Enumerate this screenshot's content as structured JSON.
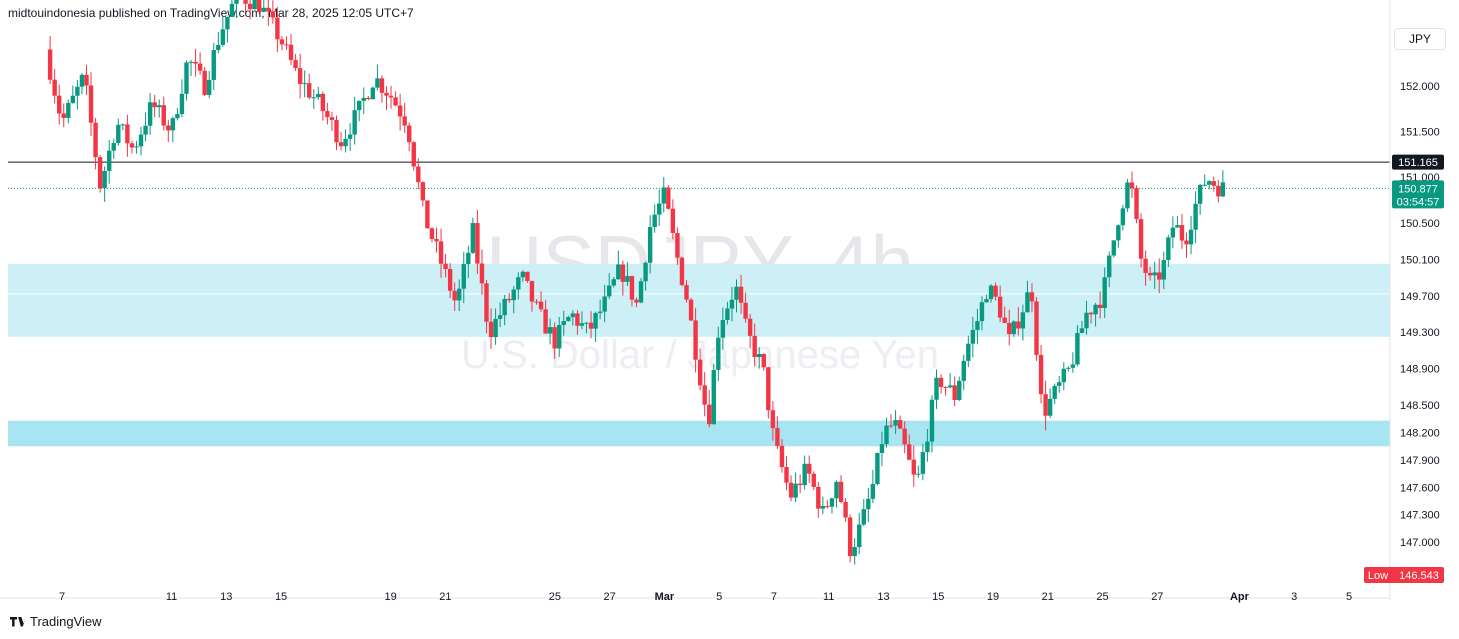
{
  "header": {
    "publisher": "midtouindonesia published on TradingView.com, Mar 28, 2025 12:05 UTC+7"
  },
  "footer": {
    "brand": "TradingView"
  },
  "currency_button": "JPY",
  "colors": {
    "up": "#089981",
    "down": "#f23645",
    "zone": "#cdf0f7",
    "zone_strong": "#a7e5f2",
    "resistance": "#131722",
    "current": "#089981"
  },
  "chart_data": {
    "type": "candlestick",
    "title": "USDJPY, 4h",
    "subtitle": "U.S. Dollar / Japanese Yen",
    "y_ticks": [
      "152.000",
      "151.500",
      "151.000",
      "150.500",
      "150.100",
      "149.700",
      "149.300",
      "148.900",
      "148.500",
      "148.200",
      "147.900",
      "147.600",
      "147.300",
      "147.000"
    ],
    "ylim": [
      146.5,
      152.7
    ],
    "x_ticks": [
      {
        "label": "7",
        "x": 7,
        "month": false
      },
      {
        "label": "11",
        "x": 11,
        "month": false
      },
      {
        "label": "13",
        "x": 13,
        "month": false
      },
      {
        "label": "15",
        "x": 15,
        "month": false
      },
      {
        "label": "19",
        "x": 19,
        "month": false
      },
      {
        "label": "21",
        "x": 21,
        "month": false
      },
      {
        "label": "25",
        "x": 25,
        "month": false
      },
      {
        "label": "27",
        "x": 27,
        "month": false
      },
      {
        "label": "Mar",
        "x": 29,
        "month": true
      },
      {
        "label": "5",
        "x": 31,
        "month": false
      },
      {
        "label": "7",
        "x": 33,
        "month": false
      },
      {
        "label": "11",
        "x": 35,
        "month": false
      },
      {
        "label": "13",
        "x": 37,
        "month": false
      },
      {
        "label": "15",
        "x": 39,
        "month": false
      },
      {
        "label": "19",
        "x": 41,
        "month": false
      },
      {
        "label": "21",
        "x": 43,
        "month": false
      },
      {
        "label": "25",
        "x": 45,
        "month": false
      },
      {
        "label": "27",
        "x": 47,
        "month": false
      },
      {
        "label": "Apr",
        "x": 50,
        "month": true
      },
      {
        "label": "3",
        "x": 52,
        "month": false
      },
      {
        "label": "5",
        "x": 54,
        "month": false
      }
    ],
    "xlim": [
      6,
      58
    ],
    "zones": [
      {
        "from": 149.25,
        "to": 150.05
      },
      {
        "from": 148.05,
        "to": 148.33
      }
    ],
    "zone_midline": 149.72,
    "resistance": {
      "value": 151.165,
      "label": "151.165"
    },
    "current": {
      "value": 150.877,
      "label": "150.877",
      "countdown": "03:54:57"
    },
    "low": {
      "label": "Low",
      "value": "146.543"
    },
    "anchors": [
      [
        6.4,
        152.4
      ],
      [
        7.0,
        151.6
      ],
      [
        7.8,
        152.1
      ],
      [
        8.4,
        150.9
      ],
      [
        9.0,
        151.6
      ],
      [
        9.6,
        151.3
      ],
      [
        10.3,
        151.8
      ],
      [
        11.0,
        151.5
      ],
      [
        11.6,
        152.3
      ],
      [
        12.2,
        152.0
      ],
      [
        12.8,
        152.6
      ],
      [
        13.4,
        153.0
      ],
      [
        14.2,
        152.9
      ],
      [
        15.0,
        152.5
      ],
      [
        15.6,
        152.1
      ],
      [
        16.4,
        151.8
      ],
      [
        17.2,
        151.4
      ],
      [
        17.8,
        151.7
      ],
      [
        18.4,
        152.1
      ],
      [
        19.0,
        151.9
      ],
      [
        19.6,
        151.6
      ],
      [
        20.2,
        150.6
      ],
      [
        20.8,
        150.1
      ],
      [
        21.4,
        149.6
      ],
      [
        22.0,
        150.4
      ],
      [
        22.6,
        149.3
      ],
      [
        23.2,
        149.6
      ],
      [
        23.8,
        149.9
      ],
      [
        24.4,
        149.5
      ],
      [
        25.0,
        149.2
      ],
      [
        25.6,
        149.5
      ],
      [
        26.2,
        149.3
      ],
      [
        26.8,
        149.6
      ],
      [
        27.4,
        150.0
      ],
      [
        28.0,
        149.6
      ],
      [
        28.5,
        150.5
      ],
      [
        29.0,
        150.8
      ],
      [
        29.4,
        150.2
      ],
      [
        29.8,
        149.7
      ],
      [
        30.2,
        149.0
      ],
      [
        30.6,
        148.3
      ],
      [
        31.0,
        149.4
      ],
      [
        31.6,
        149.8
      ],
      [
        32.0,
        149.3
      ],
      [
        32.6,
        148.9
      ],
      [
        33.0,
        148.1
      ],
      [
        33.6,
        147.5
      ],
      [
        34.2,
        147.8
      ],
      [
        34.8,
        147.3
      ],
      [
        35.3,
        147.7
      ],
      [
        35.8,
        146.9
      ],
      [
        36.2,
        147.2
      ],
      [
        36.6,
        147.6
      ],
      [
        37.0,
        148.2
      ],
      [
        37.4,
        148.3
      ],
      [
        37.8,
        148.0
      ],
      [
        38.2,
        147.6
      ],
      [
        38.6,
        148.2
      ],
      [
        39.0,
        148.8
      ],
      [
        39.6,
        148.6
      ],
      [
        40.0,
        149.1
      ],
      [
        40.4,
        149.4
      ],
      [
        40.8,
        149.8
      ],
      [
        41.2,
        149.6
      ],
      [
        41.6,
        149.2
      ],
      [
        42.0,
        149.5
      ],
      [
        42.4,
        149.8
      ],
      [
        42.8,
        148.4
      ],
      [
        43.2,
        148.6
      ],
      [
        43.8,
        148.9
      ],
      [
        44.4,
        149.5
      ],
      [
        45.0,
        149.7
      ],
      [
        45.6,
        150.6
      ],
      [
        46.0,
        151.0
      ],
      [
        46.4,
        150.1
      ],
      [
        46.8,
        149.8
      ],
      [
        47.2,
        150.0
      ],
      [
        47.6,
        150.5
      ],
      [
        48.0,
        150.3
      ],
      [
        48.4,
        150.7
      ],
      [
        48.8,
        151.0
      ],
      [
        49.2,
        150.9
      ],
      [
        49.4,
        150.877
      ]
    ]
  }
}
